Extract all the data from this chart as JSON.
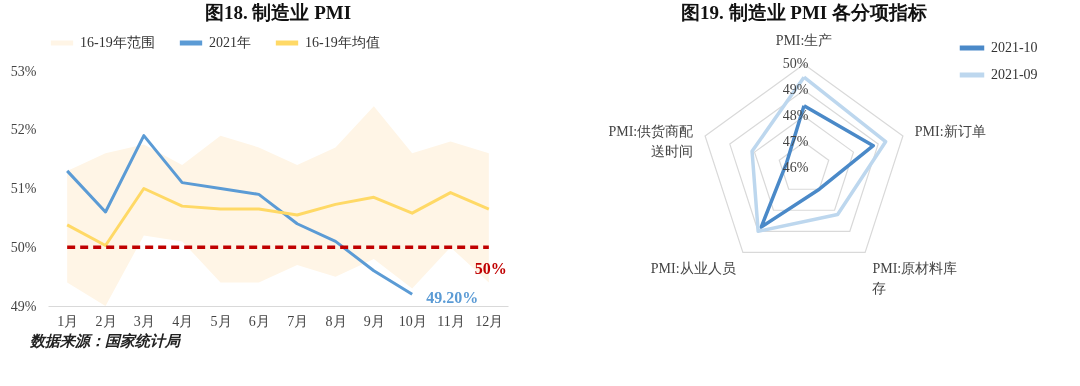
{
  "chart_data": [
    {
      "type": "line",
      "title": "图18.  制造业 PMI",
      "categories": [
        "1月",
        "2月",
        "3月",
        "4月",
        "5月",
        "6月",
        "7月",
        "8月",
        "9月",
        "10月",
        "11月",
        "12月"
      ],
      "series": [
        {
          "type": "area",
          "name": "16-19年范围",
          "color": "#fff5e6",
          "values": [
            null,
            null,
            null,
            null,
            null,
            null,
            null,
            null,
            null,
            null,
            null,
            null
          ],
          "lower": [
            49.4,
            49.0,
            50.2,
            50.1,
            49.4,
            49.4,
            49.7,
            49.5,
            49.8,
            49.3,
            50.0,
            49.4
          ],
          "upper": [
            51.3,
            51.6,
            51.75,
            51.4,
            51.9,
            51.7,
            51.4,
            51.7,
            52.4,
            51.6,
            51.8,
            51.6
          ]
        },
        {
          "name": "2021年",
          "color": "#5b9bd5",
          "values": [
            51.3,
            50.6,
            51.9,
            51.1,
            51.0,
            50.9,
            50.4,
            50.1,
            49.6,
            49.2,
            null,
            null
          ],
          "value_labels": [
            null,
            null,
            null,
            null,
            null,
            null,
            null,
            null,
            null,
            "49.20%",
            null,
            null
          ]
        },
        {
          "name": "16-19年均值",
          "color": "#ffd966",
          "values": [
            50.38,
            50.03,
            51.0,
            50.7,
            50.65,
            50.65,
            50.55,
            50.73,
            50.85,
            50.58,
            50.93,
            50.65
          ]
        }
      ],
      "ylim": [
        49,
        53
      ],
      "yticks": [
        {
          "value": 49,
          "label": "49%"
        },
        {
          "value": 50,
          "label": "50%"
        },
        {
          "value": 51,
          "label": "51%"
        },
        {
          "value": 52,
          "label": "52%"
        },
        {
          "value": 53,
          "label": "53%"
        }
      ],
      "ref_lines": [
        {
          "axis": "y",
          "value": 50,
          "label": "50%",
          "color": "#c00000",
          "line_style": "dashed"
        }
      ],
      "legend": "top",
      "annotations": [
        "数据来源：国家统计局"
      ]
    },
    {
      "type": "radar",
      "title": "图19.  制造业 PMI 各分项指标",
      "categories": [
        "PMI:生产",
        "PMI:新订单",
        "PMI:原材料库存",
        "PMI:从业人员",
        "PMI:供货商配送时间"
      ],
      "series": [
        {
          "name": "2021-10",
          "color": "#4a89c8",
          "values": [
            48.4,
            48.8,
            47.0,
            48.8,
            46.7
          ]
        },
        {
          "name": "2021-09",
          "color": "#bdd7ee",
          "values": [
            49.5,
            49.3,
            48.2,
            49.0,
            48.1
          ]
        }
      ],
      "ylim": [
        46,
        50
      ],
      "yticks": [
        {
          "value": 46,
          "label": "46%"
        },
        {
          "value": 47,
          "label": "47%"
        },
        {
          "value": 48,
          "label": "48%"
        },
        {
          "value": 49,
          "label": "49%"
        },
        {
          "value": 50,
          "label": "50%"
        }
      ],
      "grid": true,
      "legend": "top right"
    }
  ]
}
